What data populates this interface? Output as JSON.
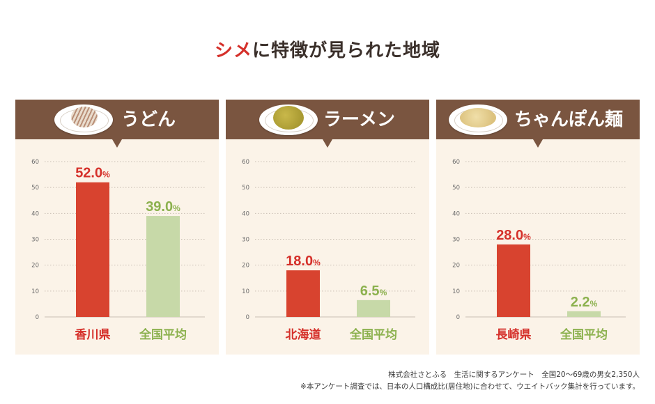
{
  "title": {
    "accent": "シメ",
    "rest": "に特徴が見られた地域"
  },
  "colors": {
    "accent": "#d5302a",
    "region_bar": "#d8432f",
    "average_bar": "#c7d9a8",
    "region_label": "#d5302a",
    "average_label": "#8cb14e",
    "header_bg": "#7a5540",
    "panel_bg": "#fbf3e8"
  },
  "panels": [
    {
      "title": "うどん",
      "food_icon": "udon-bowl-icon"
    },
    {
      "title": "ラーメン",
      "food_icon": "ramen-bowl-icon"
    },
    {
      "title": "ちゃんぽん麺",
      "food_icon": "champon-bowl-icon"
    }
  ],
  "chart_data": [
    {
      "type": "bar",
      "title": "うどん",
      "categories": [
        "香川県",
        "全国平均"
      ],
      "values": [
        52.0,
        39.0
      ],
      "value_labels": [
        "52.0",
        "39.0"
      ],
      "unit": "%",
      "ylim": [
        0,
        60
      ],
      "yticks": [
        "0",
        "10",
        "20",
        "30",
        "40",
        "50",
        "60"
      ],
      "grid": true
    },
    {
      "type": "bar",
      "title": "ラーメン",
      "categories": [
        "北海道",
        "全国平均"
      ],
      "values": [
        18.0,
        6.5
      ],
      "value_labels": [
        "18.0",
        "6.5"
      ],
      "unit": "%",
      "ylim": [
        0,
        60
      ],
      "yticks": [
        "0",
        "10",
        "20",
        "30",
        "40",
        "50",
        "60"
      ],
      "grid": true
    },
    {
      "type": "bar",
      "title": "ちゃんぽん麺",
      "categories": [
        "長崎県",
        "全国平均"
      ],
      "values": [
        28.0,
        2.2
      ],
      "value_labels": [
        "28.0",
        "2.2"
      ],
      "unit": "%",
      "ylim": [
        0,
        60
      ],
      "yticks": [
        "0",
        "10",
        "20",
        "30",
        "40",
        "50",
        "60"
      ],
      "grid": true
    }
  ],
  "footnotes": [
    "株式会社さとふる　生活に関するアンケート　全国20～69歳の男女2,350人",
    "※本アンケート調査では、日本の人口構成比(居住地)に合わせて、ウエイトバック集計を行っています。"
  ]
}
